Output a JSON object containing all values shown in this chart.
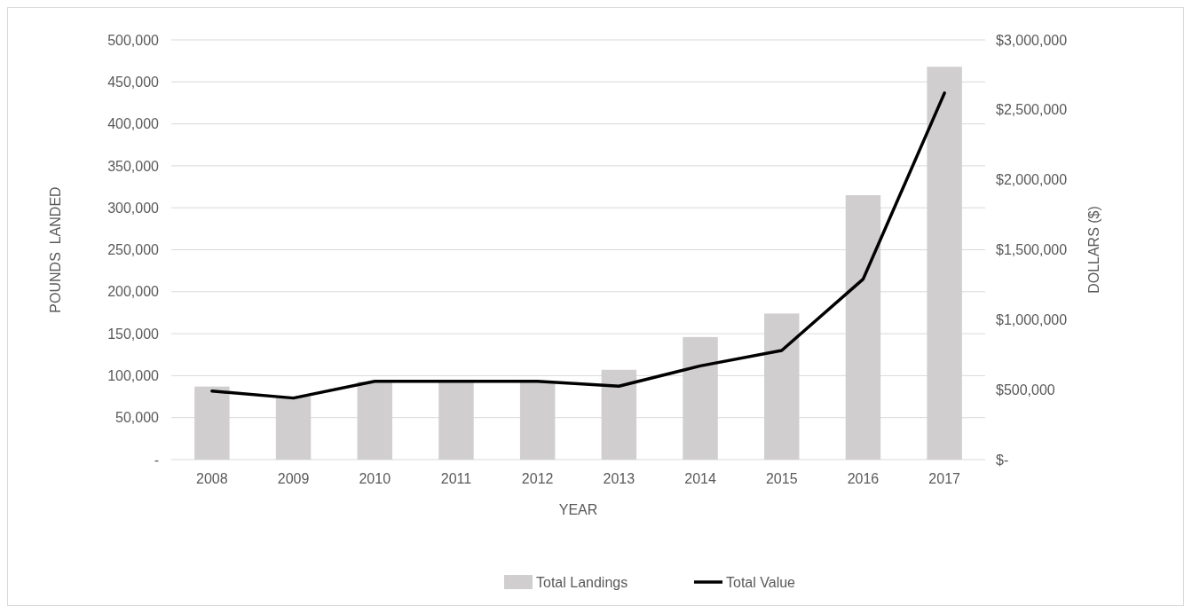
{
  "chart_data": {
    "type": "bar",
    "xlabel": "YEAR",
    "ylabel": "POUNDS  LANDED",
    "y2label": "DOLLARS ($)",
    "categories": [
      "2008",
      "2009",
      "2010",
      "2011",
      "2012",
      "2013",
      "2014",
      "2015",
      "2016",
      "2017"
    ],
    "series": [
      {
        "name": "Total Landings",
        "color": "#d0cece",
        "values": [
          87000,
          75000,
          93000,
          93000,
          93000,
          107000,
          146000,
          174000,
          315000,
          468000
        ]
      },
      {
        "name": "Total Value",
        "type": "line",
        "axis": "y2",
        "color": "#000000",
        "values": [
          490000,
          440000,
          560000,
          560000,
          560000,
          525000,
          670000,
          780000,
          1290000,
          2620000
        ]
      }
    ],
    "ylim": [
      0,
      500000
    ],
    "yticks": [
      {
        "value": 0,
        "label": "-"
      },
      {
        "value": 50000,
        "label": "50,000"
      },
      {
        "value": 100000,
        "label": "100,000"
      },
      {
        "value": 150000,
        "label": "150,000"
      },
      {
        "value": 200000,
        "label": "200,000"
      },
      {
        "value": 250000,
        "label": "250,000"
      },
      {
        "value": 300000,
        "label": "300,000"
      },
      {
        "value": 350000,
        "label": "350,000"
      },
      {
        "value": 400000,
        "label": "400,000"
      },
      {
        "value": 450000,
        "label": "450,000"
      },
      {
        "value": 500000,
        "label": "500,000"
      }
    ],
    "y2lim": [
      0,
      3000000
    ],
    "y2ticks": [
      {
        "value": 0,
        "label": "$-"
      },
      {
        "value": 500000,
        "label": "$500,000"
      },
      {
        "value": 1000000,
        "label": "$1,000,000"
      },
      {
        "value": 1500000,
        "label": "$1,500,000"
      },
      {
        "value": 2000000,
        "label": "$2,000,000"
      },
      {
        "value": 2500000,
        "label": "$2,500,000"
      },
      {
        "value": 3000000,
        "label": "$3,000,000"
      }
    ],
    "grid": "y",
    "legend": "bottom",
    "line_style": "solid"
  }
}
